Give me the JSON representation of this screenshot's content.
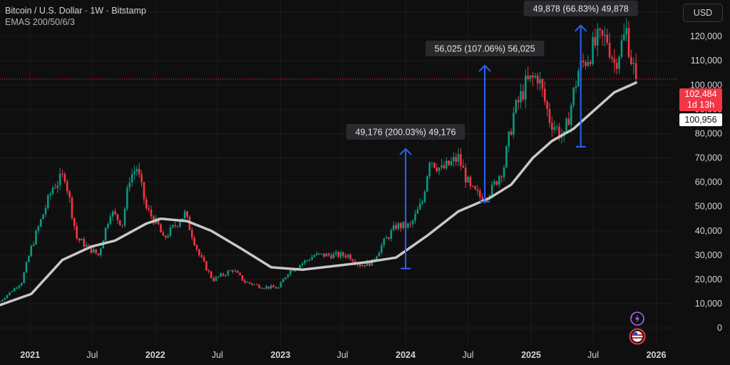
{
  "header": {
    "title": "Bitcoin / U.S. Dollar · 1W · Bitstamp",
    "indicator": "EMAS 200/50/6/3"
  },
  "currency_button": "USD",
  "price_tags": {
    "current_price": "102,484",
    "countdown": "1d 13h",
    "ema_value": "100,956"
  },
  "icons": [
    "lightning-icon",
    "us-flag-icon"
  ],
  "colors": {
    "background": "#0f0f0f",
    "up": "#089981",
    "down": "#f23645",
    "ema": "#c8c8c8",
    "arrow": "#2962ff",
    "current_line": "#f23645"
  },
  "chart_data": {
    "type": "candlestick",
    "title": "Bitcoin / U.S. Dollar · 1W · Bitstamp",
    "ylim": [
      -7000,
      135000
    ],
    "y_ticks": [
      0,
      10000,
      20000,
      30000,
      40000,
      50000,
      60000,
      70000,
      80000,
      90000,
      100000,
      110000,
      120000,
      130000
    ],
    "y_tick_labels": [
      "0",
      "10,000",
      "20,000",
      "30,000",
      "40,000",
      "50,000",
      "60,000",
      "70,000",
      "80,000",
      "90,000",
      "100,000",
      "110,000",
      "120,000",
      "130,000"
    ],
    "x_range": [
      "2020-10-05",
      "2026-02-23"
    ],
    "x_ticks": [
      {
        "date": "2021-01-01",
        "label": "2021",
        "bold": true
      },
      {
        "date": "2021-07-01",
        "label": "Jul",
        "bold": false
      },
      {
        "date": "2022-01-01",
        "label": "2022",
        "bold": true
      },
      {
        "date": "2022-07-01",
        "label": "Jul",
        "bold": false
      },
      {
        "date": "2023-01-01",
        "label": "2023",
        "bold": true
      },
      {
        "date": "2023-07-01",
        "label": "Jul",
        "bold": false
      },
      {
        "date": "2024-01-01",
        "label": "2024",
        "bold": true
      },
      {
        "date": "2024-07-01",
        "label": "Jul",
        "bold": false
      },
      {
        "date": "2025-01-01",
        "label": "2025",
        "bold": true
      },
      {
        "date": "2025-07-01",
        "label": "Jul",
        "bold": false
      },
      {
        "date": "2026-01-01",
        "label": "2026",
        "bold": true
      }
    ],
    "price_path": [
      [
        "2020-10-05",
        11000
      ],
      [
        "2020-12-07",
        19000
      ],
      [
        "2021-01-04",
        33000
      ],
      [
        "2021-02-08",
        47000
      ],
      [
        "2021-03-08",
        58000
      ],
      [
        "2021-04-12",
        63000
      ],
      [
        "2021-05-17",
        37000
      ],
      [
        "2021-06-21",
        33000
      ],
      [
        "2021-07-19",
        30000
      ],
      [
        "2021-08-23",
        48000
      ],
      [
        "2021-09-27",
        43000
      ],
      [
        "2021-10-18",
        62000
      ],
      [
        "2021-11-08",
        66000
      ],
      [
        "2021-12-06",
        49000
      ],
      [
        "2022-01-10",
        42000
      ],
      [
        "2022-01-24",
        36500
      ],
      [
        "2022-03-28",
        47000
      ],
      [
        "2022-05-09",
        30000
      ],
      [
        "2022-06-13",
        21000
      ],
      [
        "2022-06-20",
        20000
      ],
      [
        "2022-08-15",
        24000
      ],
      [
        "2022-09-19",
        19000
      ],
      [
        "2022-11-07",
        17000
      ],
      [
        "2022-12-26",
        16500
      ],
      [
        "2023-01-23",
        23000
      ],
      [
        "2023-03-20",
        28000
      ],
      [
        "2023-04-10",
        30000
      ],
      [
        "2023-06-19",
        30000
      ],
      [
        "2023-07-17",
        30000
      ],
      [
        "2023-08-21",
        26000
      ],
      [
        "2023-09-25",
        27000
      ],
      [
        "2023-10-23",
        34000
      ],
      [
        "2023-12-04",
        42000
      ],
      [
        "2024-01-15",
        42000
      ],
      [
        "2024-02-19",
        52000
      ],
      [
        "2024-03-11",
        70000
      ],
      [
        "2024-04-15",
        65000
      ],
      [
        "2024-06-03",
        70000
      ],
      [
        "2024-07-08",
        57000
      ],
      [
        "2024-08-05",
        54000
      ],
      [
        "2024-09-09",
        57000
      ],
      [
        "2024-10-14",
        67000
      ],
      [
        "2024-11-11",
        88000
      ],
      [
        "2024-12-16",
        100000
      ],
      [
        "2025-01-20",
        104000
      ],
      [
        "2025-02-24",
        86000
      ],
      [
        "2025-04-07",
        78000
      ],
      [
        "2025-05-19",
        106000
      ],
      [
        "2025-07-14",
        118000
      ],
      [
        "2025-08-11",
        119000
      ],
      [
        "2025-09-01",
        109000
      ],
      [
        "2025-10-06",
        122000
      ],
      [
        "2025-10-20",
        111000
      ],
      [
        "2025-11-03",
        102484
      ]
    ],
    "series": [
      {
        "name": "EMAS 200/50/6/3",
        "points": [
          [
            "2020-10-05",
            9500
          ],
          [
            "2021-01-04",
            14000
          ],
          [
            "2021-04-05",
            28000
          ],
          [
            "2021-06-28",
            33500
          ],
          [
            "2021-09-06",
            36000
          ],
          [
            "2021-12-06",
            43000
          ],
          [
            "2022-01-17",
            45000
          ],
          [
            "2022-04-04",
            44000
          ],
          [
            "2022-06-13",
            40000
          ],
          [
            "2022-09-05",
            33000
          ],
          [
            "2022-12-05",
            25000
          ],
          [
            "2023-03-06",
            24000
          ],
          [
            "2023-06-05",
            25500
          ],
          [
            "2023-09-04",
            27000
          ],
          [
            "2023-12-04",
            29000
          ],
          [
            "2024-03-04",
            38000
          ],
          [
            "2024-06-03",
            48000
          ],
          [
            "2024-09-02",
            53500
          ],
          [
            "2024-11-04",
            59000
          ],
          [
            "2025-01-06",
            70000
          ],
          [
            "2025-03-03",
            77000
          ],
          [
            "2025-05-05",
            82000
          ],
          [
            "2025-07-07",
            90000
          ],
          [
            "2025-09-01",
            97000
          ],
          [
            "2025-11-03",
            100956
          ]
        ]
      }
    ],
    "current_price": 102484,
    "annotations": [
      {
        "label": "49,176 (200.03%) 49,176",
        "x": "2024-01-01",
        "from": 24500,
        "to": 73700
      },
      {
        "label": "56,025 (107.06%) 56,025",
        "x": "2024-08-19",
        "from": 52000,
        "to": 108000
      },
      {
        "label": "49,878 (66.83%) 49,878",
        "x": "2025-05-26",
        "from": 74600,
        "to": 124500
      }
    ]
  }
}
